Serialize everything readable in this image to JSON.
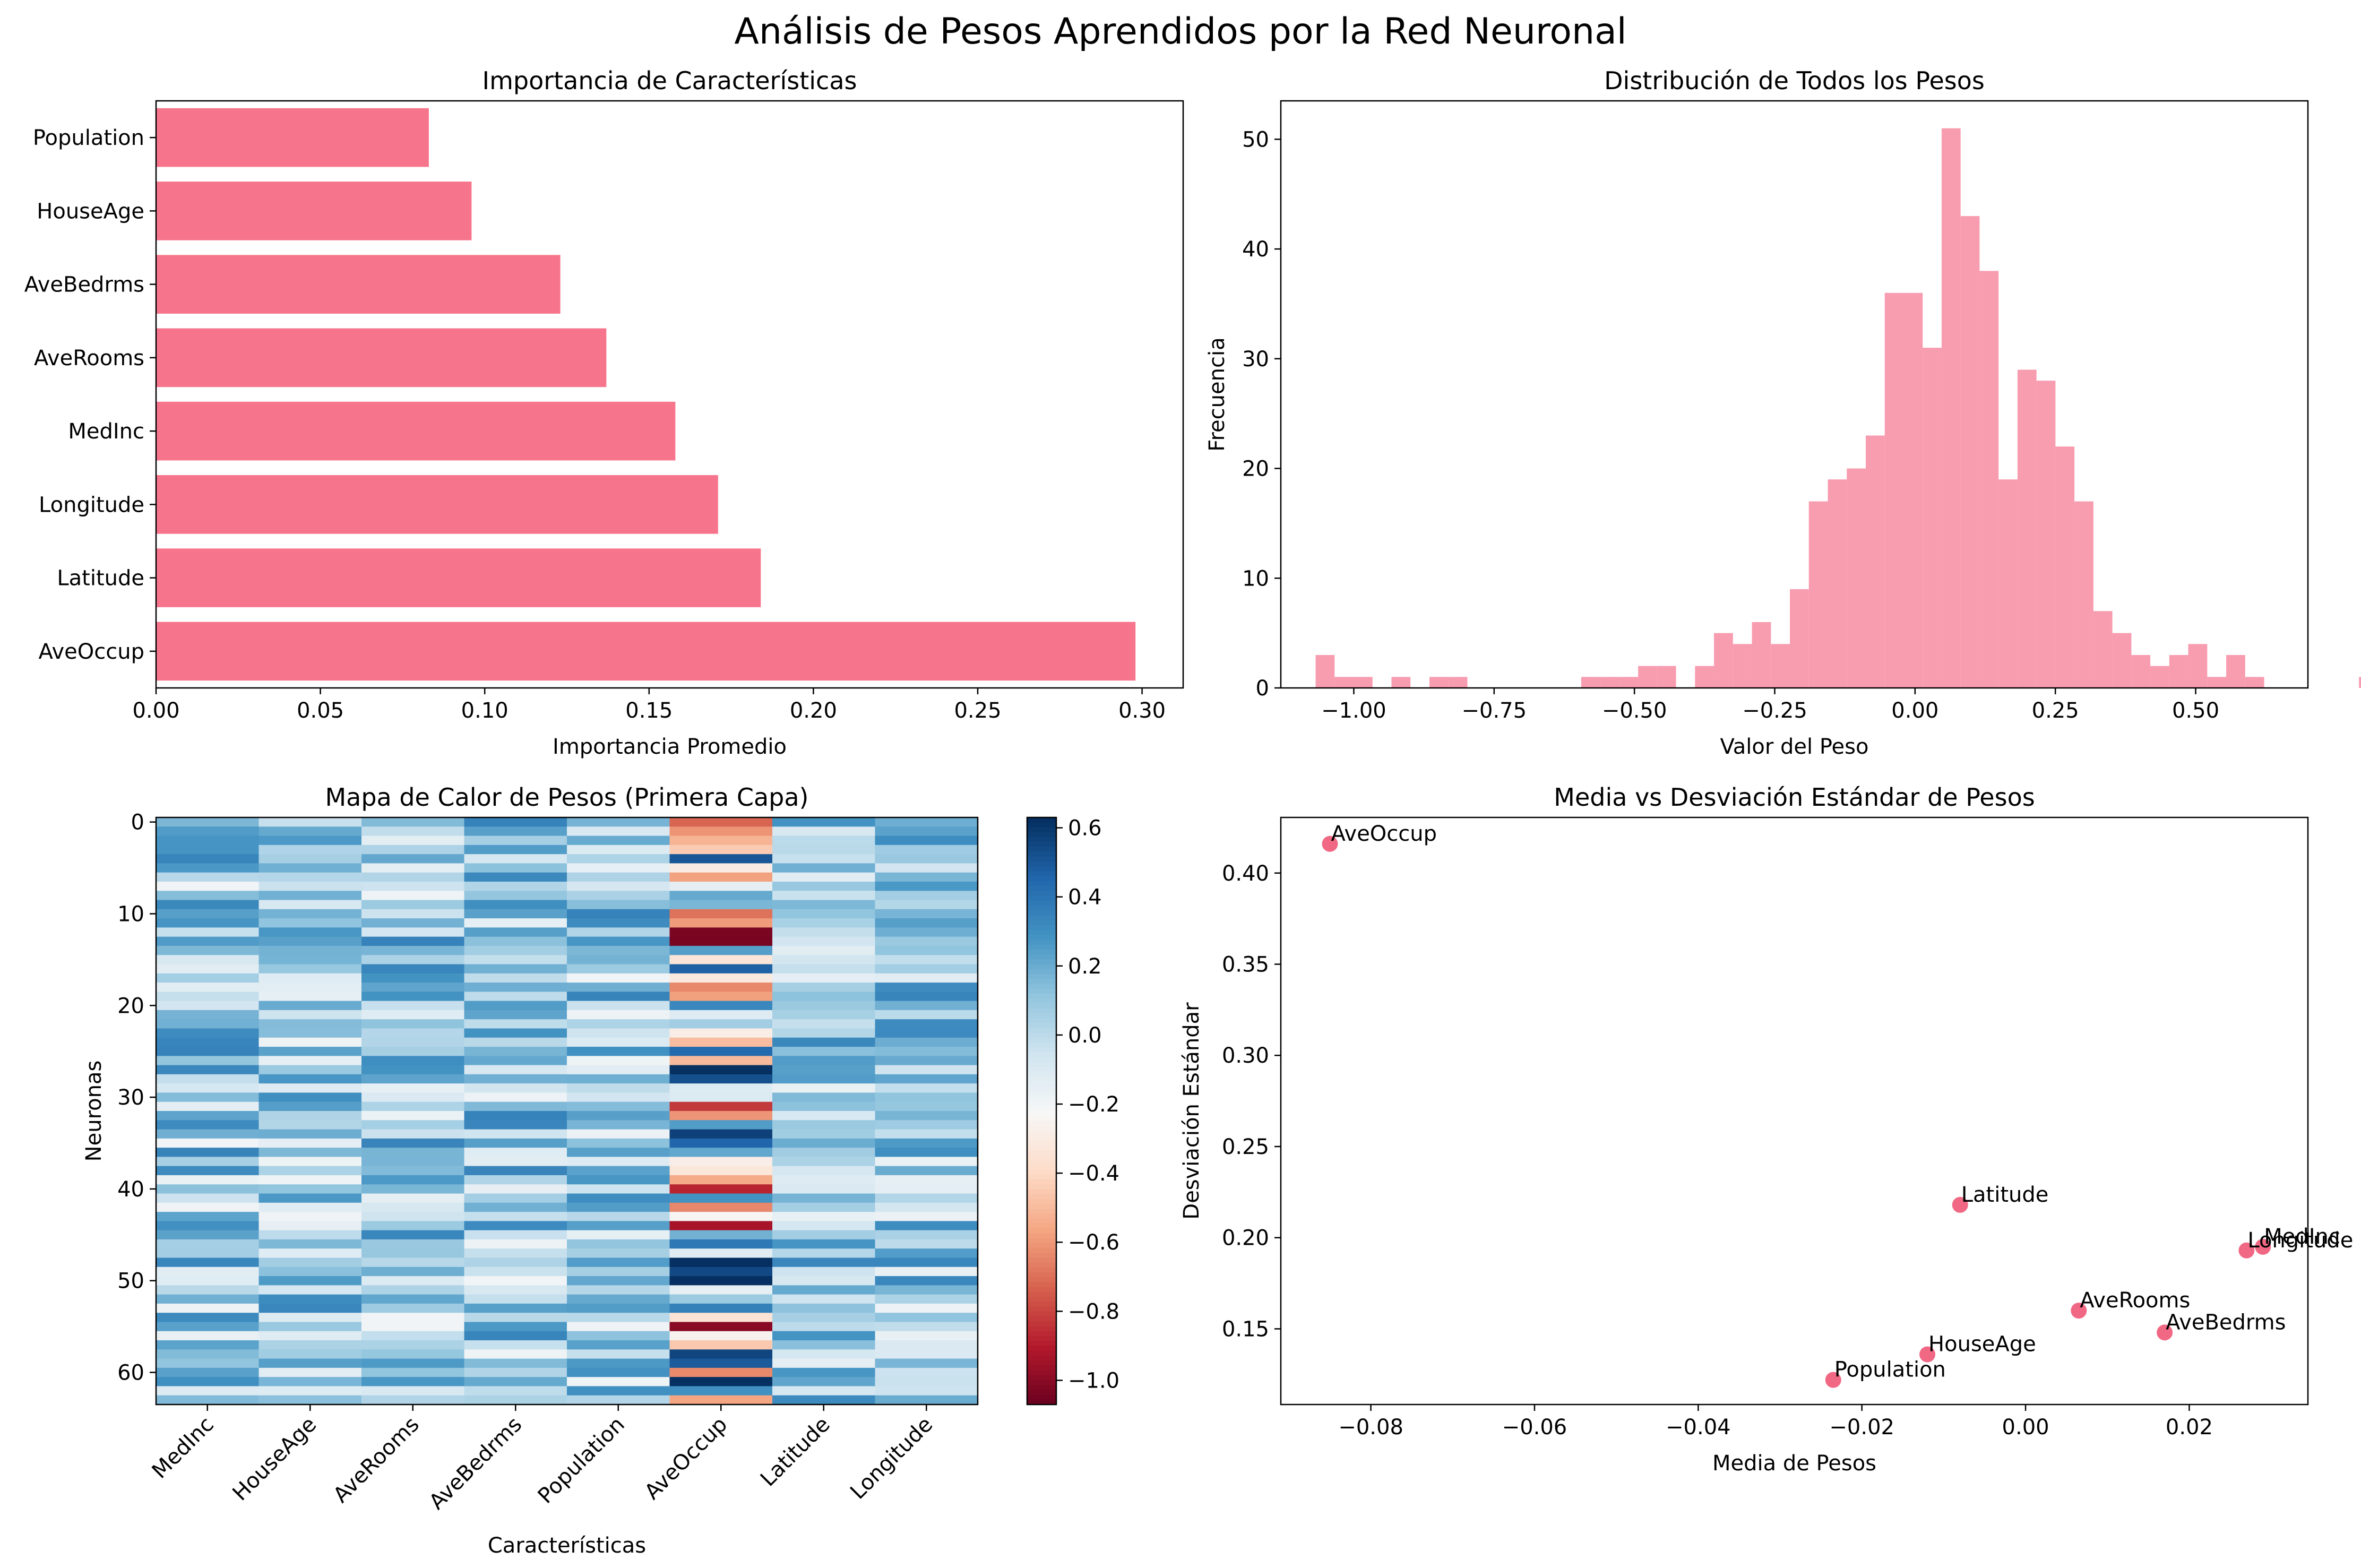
{
  "figure": {
    "suptitle": "Análisis de Pesos Aprendidos por la Red Neuronal"
  },
  "chart_data": [
    {
      "type": "bar",
      "orientation": "horizontal",
      "title": "Importancia de Características",
      "xlabel": "Importancia Promedio",
      "ylabel": "",
      "categories": [
        "AveOccup",
        "Latitude",
        "Longitude",
        "MedInc",
        "AveRooms",
        "AveBedrms",
        "HouseAge",
        "Population"
      ],
      "values": [
        0.298,
        0.184,
        0.171,
        0.158,
        0.137,
        0.123,
        0.096,
        0.083
      ],
      "xlim": [
        0,
        0.3125
      ],
      "xticks": [
        "0.00",
        "0.05",
        "0.10",
        "0.15",
        "0.20",
        "0.25",
        "0.30"
      ],
      "xtick_values": [
        0,
        0.05,
        0.1,
        0.15,
        0.2,
        0.25,
        0.3
      ],
      "color": "#f7758c",
      "grid": false
    },
    {
      "type": "bar",
      "subtype": "histogram",
      "title": "Distribución de Todos los Pesos",
      "xlabel": "Valor del Peso",
      "ylabel": "Frecuencia",
      "bin_start": -1.068,
      "bin_width": 0.0338,
      "counts": [
        3,
        1,
        1,
        0,
        1,
        0,
        1,
        1,
        0,
        0,
        0,
        0,
        0,
        0,
        1,
        1,
        1,
        2,
        2,
        0,
        2,
        5,
        4,
        6,
        4,
        9,
        17,
        19,
        20,
        23,
        36,
        36,
        31,
        51,
        43,
        38,
        19,
        29,
        28,
        22,
        17,
        7,
        5,
        3,
        2,
        3,
        4,
        1,
        3,
        1,
        0,
        0,
        0,
        0,
        0,
        1
      ],
      "xlim": [
        -1.13,
        0.7
      ],
      "ylim": [
        0,
        53.5
      ],
      "xticks": [
        "−1.00",
        "−0.75",
        "−0.50",
        "−0.25",
        "0.00",
        "0.25",
        "0.50"
      ],
      "xtick_values": [
        -1.0,
        -0.75,
        -0.5,
        -0.25,
        0,
        0.25,
        0.5
      ],
      "yticks": [
        "0",
        "10",
        "20",
        "30",
        "40",
        "50"
      ],
      "ytick_values": [
        0,
        10,
        20,
        30,
        40,
        50
      ],
      "color": "#f89caf",
      "grid": false
    },
    {
      "type": "heatmap",
      "title": "Mapa de Calor de Pesos (Primera Capa)",
      "xlabel": "Características",
      "ylabel": "Neuronas",
      "columns": [
        "MedInc",
        "HouseAge",
        "AveRooms",
        "AveBedrms",
        "Population",
        "AveOccup",
        "Latitude",
        "Longitude"
      ],
      "n_rows": 64,
      "yticks": [
        "0",
        "10",
        "20",
        "30",
        "40",
        "50",
        "60"
      ],
      "ytick_values": [
        0,
        10,
        20,
        30,
        40,
        50,
        60
      ],
      "vmin": -1.07,
      "vmax": 0.63,
      "colormap": "RdBu",
      "colorbar_ticks": [
        "0.6",
        "0.4",
        "0.2",
        "0.0",
        "−0.2",
        "−0.4",
        "−0.6",
        "−0.8",
        "−1.0"
      ],
      "colorbar_tick_values": [
        0.6,
        0.4,
        0.2,
        0.0,
        -0.2,
        -0.4,
        -0.6,
        -0.8,
        -1.0
      ]
    },
    {
      "type": "scatter",
      "title": "Media vs Desviación Estándar de Pesos",
      "xlabel": "Media de Pesos",
      "ylabel": "Desviación Estándar",
      "points": [
        {
          "label": "AveOccup",
          "x": -0.085,
          "y": 0.416
        },
        {
          "label": "Latitude",
          "x": -0.008,
          "y": 0.218
        },
        {
          "label": "MedInc",
          "x": 0.029,
          "y": 0.195
        },
        {
          "label": "Longitude",
          "x": 0.027,
          "y": 0.193
        },
        {
          "label": "AveRooms",
          "x": 0.0065,
          "y": 0.16
        },
        {
          "label": "AveBedrms",
          "x": 0.017,
          "y": 0.148
        },
        {
          "label": "HouseAge",
          "x": -0.012,
          "y": 0.136
        },
        {
          "label": "Population",
          "x": -0.0235,
          "y": 0.122
        }
      ],
      "xlim": [
        -0.091,
        0.0345
      ],
      "ylim": [
        0.1085,
        0.4305
      ],
      "xticks": [
        "−0.08",
        "−0.06",
        "−0.04",
        "−0.02",
        "0.00",
        "0.02"
      ],
      "xtick_values": [
        -0.08,
        -0.06,
        -0.04,
        -0.02,
        0.0,
        0.02
      ],
      "yticks": [
        "0.15",
        "0.20",
        "0.25",
        "0.30",
        "0.35",
        "0.40"
      ],
      "ytick_values": [
        0.15,
        0.2,
        0.25,
        0.3,
        0.35,
        0.4
      ],
      "color": "#f06884",
      "grid": false
    }
  ]
}
